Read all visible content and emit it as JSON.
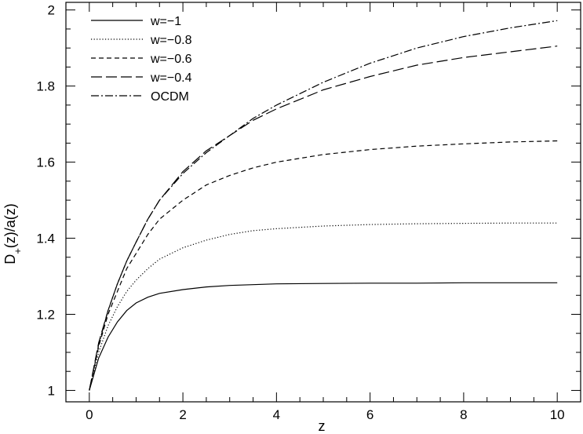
{
  "chart_data": {
    "type": "line",
    "xlabel": "z",
    "ylabel": "D+(z)/a(z)",
    "xlim": [
      -0.5,
      10.5
    ],
    "ylim": [
      0.97,
      2.02
    ],
    "xticks": [
      0,
      2,
      4,
      6,
      8,
      10
    ],
    "yticks": [
      1,
      1.2,
      1.4,
      1.6,
      1.8,
      2
    ],
    "grid": false,
    "legend_position": "top-left",
    "x": [
      0,
      0.2,
      0.4,
      0.6,
      0.8,
      1.0,
      1.25,
      1.5,
      2.0,
      2.5,
      3.0,
      3.5,
      4.0,
      5.0,
      6.0,
      7.0,
      8.0,
      9.0,
      10.0
    ],
    "series": [
      {
        "name": "w=−1",
        "dash": "solid",
        "values": [
          1.0,
          1.085,
          1.14,
          1.18,
          1.21,
          1.23,
          1.245,
          1.255,
          1.265,
          1.272,
          1.276,
          1.278,
          1.28,
          1.281,
          1.282,
          1.282,
          1.283,
          1.283,
          1.283
        ]
      },
      {
        "name": "w=−0.8",
        "dash": "dotted",
        "values": [
          1.0,
          1.1,
          1.17,
          1.22,
          1.26,
          1.29,
          1.32,
          1.345,
          1.375,
          1.395,
          1.41,
          1.42,
          1.425,
          1.432,
          1.436,
          1.438,
          1.439,
          1.44,
          1.44
        ]
      },
      {
        "name": "w=−0.6",
        "dash": "short-dashed",
        "values": [
          1.0,
          1.115,
          1.2,
          1.26,
          1.32,
          1.36,
          1.41,
          1.45,
          1.5,
          1.54,
          1.565,
          1.585,
          1.6,
          1.62,
          1.633,
          1.642,
          1.648,
          1.653,
          1.656
        ]
      },
      {
        "name": "w=−0.4",
        "dash": "long-dashed",
        "values": [
          1.0,
          1.125,
          1.21,
          1.28,
          1.34,
          1.39,
          1.45,
          1.5,
          1.575,
          1.63,
          1.67,
          1.71,
          1.74,
          1.79,
          1.825,
          1.855,
          1.875,
          1.89,
          1.905
        ]
      },
      {
        "name": "OCDM",
        "dash": "dash-dot",
        "values": [
          1.0,
          1.12,
          1.21,
          1.28,
          1.34,
          1.39,
          1.45,
          1.5,
          1.57,
          1.625,
          1.67,
          1.715,
          1.75,
          1.81,
          1.86,
          1.9,
          1.93,
          1.953,
          1.972
        ]
      }
    ]
  }
}
